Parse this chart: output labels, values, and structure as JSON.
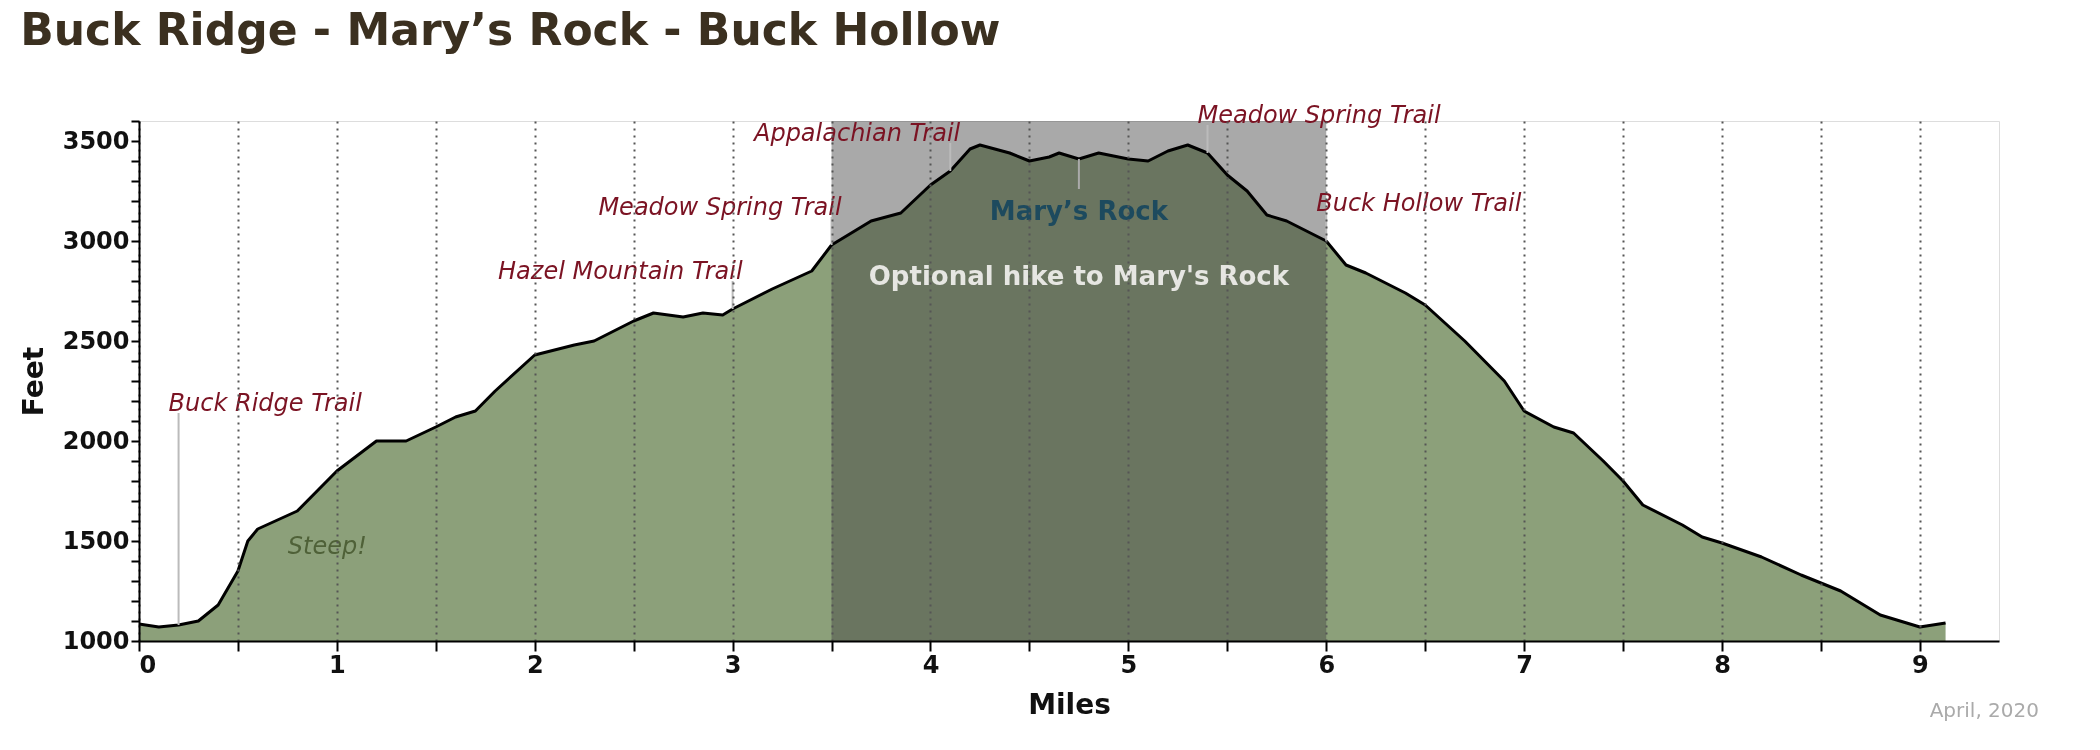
{
  "chart_data": {
    "type": "area",
    "title": "Buck Ridge - Mary’s Rock - Buck Hollow",
    "xlabel": "Miles",
    "ylabel": "Feet",
    "x": [
      0,
      0.1,
      0.2,
      0.3,
      0.4,
      0.5,
      0.55,
      0.6,
      0.8,
      1.0,
      1.2,
      1.35,
      1.5,
      1.6,
      1.7,
      1.8,
      2.0,
      2.2,
      2.3,
      2.5,
      2.6,
      2.75,
      2.85,
      2.95,
      3.0,
      3.2,
      3.4,
      3.5,
      3.7,
      3.85,
      4.0,
      4.1,
      4.2,
      4.25,
      4.4,
      4.5,
      4.6,
      4.65,
      4.75,
      4.85,
      5.0,
      5.1,
      5.2,
      5.3,
      5.4,
      5.5,
      5.6,
      5.7,
      5.8,
      6.0,
      6.1,
      6.2,
      6.4,
      6.5,
      6.7,
      6.9,
      7.0,
      7.15,
      7.25,
      7.4,
      7.5,
      7.6,
      7.8,
      7.9,
      8.0,
      8.2,
      8.4,
      8.6,
      8.8,
      9.0,
      9.13
    ],
    "series": [
      {
        "color": "#8ca07a",
        "values": [
          1085,
          1070,
          1080,
          1100,
          1180,
          1350,
          1500,
          1560,
          1650,
          1850,
          2000,
          2000,
          2070,
          2120,
          2150,
          2250,
          2430,
          2480,
          2500,
          2600,
          2640,
          2620,
          2640,
          2630,
          2660,
          2760,
          2850,
          2980,
          3100,
          3140,
          3280,
          3350,
          3460,
          3480,
          3440,
          3400,
          3420,
          3440,
          3410,
          3440,
          3410,
          3400,
          3450,
          3480,
          3440,
          3330,
          3250,
          3130,
          3100,
          3000,
          2880,
          2840,
          2740,
          2680,
          2500,
          2300,
          2150,
          2070,
          2040,
          1900,
          1800,
          1680,
          1580,
          1520,
          1490,
          1420,
          1330,
          1250,
          1130,
          1070,
          1090
        ]
      }
    ],
    "xlim": [
      0,
      9.4
    ],
    "ylim": [
      1000,
      3600
    ],
    "xticks": [
      0,
      {
        "value": 0.5,
        "label": null
      },
      1,
      {
        "value": 1.5,
        "label": null
      },
      2,
      {
        "value": 2.5,
        "label": null
      },
      3,
      {
        "value": 3.5,
        "label": null
      },
      4,
      {
        "value": 4.5,
        "label": null
      },
      5,
      {
        "value": 5.5,
        "label": null
      },
      6,
      {
        "value": 6.5,
        "label": null
      },
      7,
      {
        "value": 7.5,
        "label": null
      },
      8,
      {
        "value": 8.5,
        "label": null
      },
      9
    ],
    "yticks": [
      1000,
      {
        "value": 1100,
        "label": null
      },
      {
        "value": 1200,
        "label": null
      },
      {
        "value": 1300,
        "label": null
      },
      {
        "value": 1400,
        "label": null
      },
      1500,
      {
        "value": 1600,
        "label": null
      },
      {
        "value": 1700,
        "label": null
      },
      {
        "value": 1800,
        "label": null
      },
      {
        "value": 1900,
        "label": null
      },
      2000,
      {
        "value": 2100,
        "label": null
      },
      {
        "value": 2200,
        "label": null
      },
      {
        "value": 2300,
        "label": null
      },
      {
        "value": 2400,
        "label": null
      },
      2500,
      {
        "value": 2600,
        "label": null
      },
      {
        "value": 2700,
        "label": null
      },
      {
        "value": 2800,
        "label": null
      },
      {
        "value": 2900,
        "label": null
      },
      3000,
      {
        "value": 3100,
        "label": null
      },
      {
        "value": 3200,
        "label": null
      },
      {
        "value": 3300,
        "label": null
      },
      {
        "value": 3400,
        "label": null
      },
      3500,
      {
        "value": 3600,
        "label": null
      }
    ],
    "bands": [
      {
        "axis": "x",
        "from": 3.5,
        "to": 6,
        "color": "#404040",
        "label": "Optional hike to Mary's Rock"
      }
    ],
    "grid": "x",
    "line_style": "solid",
    "annotations": [
      {
        "text": "Buck Ridge Trail",
        "x": 0.2,
        "y": 1080
      },
      "Steep!",
      {
        "text": "Hazel Mountain Trail",
        "x": 3.0,
        "y": 2660
      },
      {
        "text": "Meadow Spring Trail",
        "x": 3.5,
        "y": 2980
      },
      {
        "text": "Appalachian Trail",
        "x": 4.1,
        "y": 3350
      },
      {
        "text": "Mary’s Rock",
        "x": 4.75,
        "y": 3410
      },
      {
        "text": "Meadow Spring Trail",
        "x": 5.4,
        "y": 3440
      },
      {
        "text": "Buck Hollow Trail",
        "x": 6.0,
        "y": 3000
      },
      "April, 2020"
    ]
  }
}
